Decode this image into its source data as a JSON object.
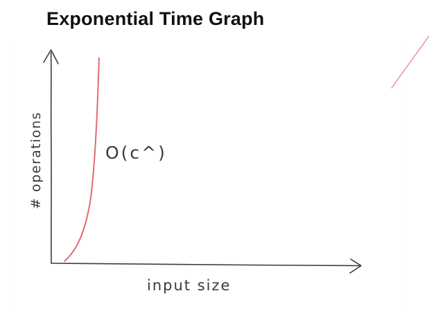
{
  "slide": {
    "title": "Exponential Time Graph"
  },
  "graph": {
    "y_axis_label": "# operations",
    "x_axis_label": "input size",
    "curve_label": "O(c^)",
    "colors": {
      "axes": "#3c3c3c",
      "curve": "#e06a78",
      "accent_line": "#e8848f",
      "text": "#3a3a3a"
    }
  }
}
